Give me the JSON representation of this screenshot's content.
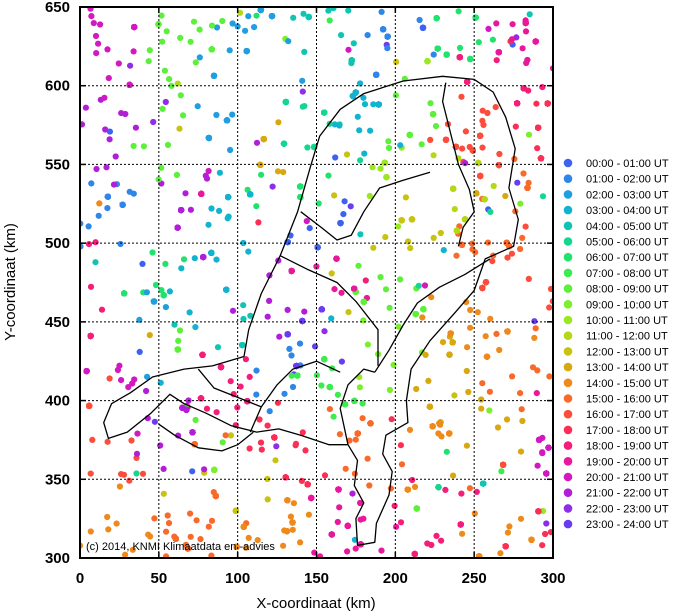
{
  "credit": "(c) 2014, KNMI Klimaatdata en -advies",
  "chart_data": {
    "type": "scatter",
    "xlabel": "X-coordinaat (km)",
    "ylabel": "Y-coordinaat (km)",
    "xlim": [
      0,
      300
    ],
    "ylim": [
      300,
      650
    ],
    "x_ticks": [
      0,
      50,
      100,
      150,
      200,
      250,
      300
    ],
    "y_ticks": [
      300,
      350,
      400,
      450,
      500,
      550,
      600,
      650
    ],
    "grid": true,
    "legend_position": "right",
    "series": [
      {
        "name": "00:00 - 01:00 UT",
        "color": "#3d62f2"
      },
      {
        "name": "01:00 - 02:00 UT",
        "color": "#2e86e8"
      },
      {
        "name": "02:00 - 03:00 UT",
        "color": "#1f9ee0"
      },
      {
        "name": "03:00 - 04:00 UT",
        "color": "#12b3cf"
      },
      {
        "name": "04:00 - 05:00 UT",
        "color": "#10c4b2"
      },
      {
        "name": "05:00 - 06:00 UT",
        "color": "#14d690"
      },
      {
        "name": "06:00 - 07:00 UT",
        "color": "#22e26e"
      },
      {
        "name": "07:00 - 08:00 UT",
        "color": "#3cec4e"
      },
      {
        "name": "08:00 - 09:00 UT",
        "color": "#5cf03a"
      },
      {
        "name": "09:00 - 10:00 UT",
        "color": "#7cef2c"
      },
      {
        "name": "10:00 - 11:00 UT",
        "color": "#9ae81e"
      },
      {
        "name": "11:00 - 12:00 UT",
        "color": "#b4d816"
      },
      {
        "name": "12:00 - 13:00 UT",
        "color": "#c8c210"
      },
      {
        "name": "13:00 - 14:00 UT",
        "color": "#d8a810"
      },
      {
        "name": "14:00 - 15:00 UT",
        "color": "#ee8a1c"
      },
      {
        "name": "15:00 - 16:00 UT",
        "color": "#f86a2a"
      },
      {
        "name": "16:00 - 17:00 UT",
        "color": "#fb4c3c"
      },
      {
        "name": "17:00 - 18:00 UT",
        "color": "#fb2f56"
      },
      {
        "name": "18:00 - 19:00 UT",
        "color": "#f41e78"
      },
      {
        "name": "19:00 - 20:00 UT",
        "color": "#e8189c"
      },
      {
        "name": "20:00 - 21:00 UT",
        "color": "#d218c0"
      },
      {
        "name": "21:00 - 22:00 UT",
        "color": "#b21ed8"
      },
      {
        "name": "22:00 - 23:00 UT",
        "color": "#8e2ee8"
      },
      {
        "name": "23:00 - 24:00 UT",
        "color": "#6a3cf0"
      }
    ],
    "hotspots": [
      {
        "x": 20,
        "y": 620,
        "hour": 20
      },
      {
        "x": 60,
        "y": 625,
        "hour": 8
      },
      {
        "x": 110,
        "y": 615,
        "hour": 2
      },
      {
        "x": 160,
        "y": 625,
        "hour": 4
      },
      {
        "x": 200,
        "y": 630,
        "hour": 1
      },
      {
        "x": 245,
        "y": 622,
        "hour": 6
      },
      {
        "x": 285,
        "y": 620,
        "hour": 19
      },
      {
        "x": 15,
        "y": 570,
        "hour": 21
      },
      {
        "x": 55,
        "y": 570,
        "hour": 8
      },
      {
        "x": 95,
        "y": 580,
        "hour": 2
      },
      {
        "x": 140,
        "y": 575,
        "hour": 5
      },
      {
        "x": 175,
        "y": 590,
        "hour": 3
      },
      {
        "x": 215,
        "y": 595,
        "hour": 8
      },
      {
        "x": 250,
        "y": 575,
        "hour": 16
      },
      {
        "x": 285,
        "y": 570,
        "hour": 17
      },
      {
        "x": 20,
        "y": 520,
        "hour": 1
      },
      {
        "x": 60,
        "y": 520,
        "hour": 21
      },
      {
        "x": 90,
        "y": 510,
        "hour": 3
      },
      {
        "x": 130,
        "y": 525,
        "hour": 6
      },
      {
        "x": 160,
        "y": 520,
        "hour": 0
      },
      {
        "x": 200,
        "y": 525,
        "hour": 10
      },
      {
        "x": 240,
        "y": 530,
        "hour": 11
      },
      {
        "x": 280,
        "y": 520,
        "hour": 15
      },
      {
        "x": 10,
        "y": 470,
        "hour": 18
      },
      {
        "x": 45,
        "y": 480,
        "hour": 6
      },
      {
        "x": 80,
        "y": 470,
        "hour": 3
      },
      {
        "x": 120,
        "y": 460,
        "hour": 21
      },
      {
        "x": 160,
        "y": 470,
        "hour": 19
      },
      {
        "x": 195,
        "y": 470,
        "hour": 8
      },
      {
        "x": 230,
        "y": 465,
        "hour": 14
      },
      {
        "x": 270,
        "y": 470,
        "hour": 16
      },
      {
        "x": 20,
        "y": 420,
        "hour": 20
      },
      {
        "x": 50,
        "y": 425,
        "hour": 8
      },
      {
        "x": 90,
        "y": 410,
        "hour": 18
      },
      {
        "x": 125,
        "y": 420,
        "hour": 1
      },
      {
        "x": 160,
        "y": 410,
        "hour": 7
      },
      {
        "x": 195,
        "y": 425,
        "hour": 9
      },
      {
        "x": 230,
        "y": 415,
        "hour": 13
      },
      {
        "x": 270,
        "y": 420,
        "hour": 15
      },
      {
        "x": 20,
        "y": 370,
        "hour": 16
      },
      {
        "x": 60,
        "y": 375,
        "hour": 21
      },
      {
        "x": 100,
        "y": 360,
        "hour": 12
      },
      {
        "x": 140,
        "y": 375,
        "hour": 17
      },
      {
        "x": 180,
        "y": 370,
        "hour": 15
      },
      {
        "x": 220,
        "y": 365,
        "hour": 14
      },
      {
        "x": 260,
        "y": 370,
        "hour": 13
      },
      {
        "x": 290,
        "y": 360,
        "hour": 20
      },
      {
        "x": 20,
        "y": 320,
        "hour": 14
      },
      {
        "x": 70,
        "y": 320,
        "hour": 15
      },
      {
        "x": 120,
        "y": 315,
        "hour": 14
      },
      {
        "x": 170,
        "y": 320,
        "hour": 19
      },
      {
        "x": 220,
        "y": 320,
        "hour": 18
      },
      {
        "x": 265,
        "y": 320,
        "hour": 14
      },
      {
        "x": 290,
        "y": 330,
        "hour": 17
      },
      {
        "x": 145,
        "y": 440,
        "hour": 23
      },
      {
        "x": 105,
        "y": 440,
        "hour": 4
      },
      {
        "x": 215,
        "y": 500,
        "hour": 12
      },
      {
        "x": 240,
        "y": 490,
        "hour": 15
      },
      {
        "x": 120,
        "y": 560,
        "hour": 13
      },
      {
        "x": 35,
        "y": 600,
        "hour": 22
      },
      {
        "x": 265,
        "y": 600,
        "hour": 18
      },
      {
        "x": 180,
        "y": 440,
        "hour": 9
      },
      {
        "x": 260,
        "y": 440,
        "hour": 14
      },
      {
        "x": 35,
        "y": 450,
        "hour": 2
      }
    ],
    "borders": [
      [
        [
          104,
          428
        ],
        [
          107,
          445
        ],
        [
          115,
          468
        ],
        [
          127,
          492
        ],
        [
          138,
          520
        ],
        [
          146,
          548
        ],
        [
          152,
          568
        ],
        [
          165,
          585
        ],
        [
          180,
          595
        ],
        [
          205,
          603
        ],
        [
          230,
          606
        ],
        [
          250,
          604
        ],
        [
          262,
          596
        ],
        [
          270,
          580
        ],
        [
          276,
          560
        ],
        [
          272,
          535
        ],
        [
          278,
          515
        ],
        [
          275,
          498
        ],
        [
          257,
          490
        ],
        [
          250,
          470
        ],
        [
          238,
          456
        ],
        [
          222,
          438
        ],
        [
          210,
          420
        ],
        [
          207,
          400
        ],
        [
          208,
          386
        ],
        [
          194,
          378
        ],
        [
          192,
          366
        ],
        [
          198,
          355
        ],
        [
          196,
          340
        ],
        [
          188,
          322
        ],
        [
          187,
          310
        ],
        [
          176,
          308
        ],
        [
          175,
          325
        ],
        [
          180,
          335
        ],
        [
          174,
          346
        ],
        [
          176,
          362
        ],
        [
          170,
          372
        ],
        [
          158,
          372
        ],
        [
          140,
          378
        ],
        [
          126,
          382
        ],
        [
          112,
          380
        ],
        [
          96,
          384
        ],
        [
          80,
          392
        ],
        [
          66,
          398
        ],
        [
          57,
          404
        ],
        [
          45,
          392
        ],
        [
          30,
          380
        ],
        [
          18,
          376
        ],
        [
          15,
          386
        ],
        [
          20,
          398
        ],
        [
          32,
          405
        ],
        [
          46,
          415
        ],
        [
          66,
          420
        ],
        [
          84,
          422
        ],
        [
          104,
          428
        ]
      ],
      [
        [
          240,
          498
        ],
        [
          243,
          510
        ],
        [
          250,
          520
        ],
        [
          247,
          534
        ],
        [
          240,
          550
        ],
        [
          235,
          570
        ],
        [
          230,
          590
        ],
        [
          232,
          602
        ]
      ],
      [
        [
          187,
          418
        ],
        [
          196,
          432
        ],
        [
          205,
          448
        ],
        [
          214,
          462
        ],
        [
          228,
          472
        ],
        [
          244,
          480
        ],
        [
          260,
          490
        ]
      ],
      [
        [
          170,
          372
        ],
        [
          165,
          395
        ],
        [
          170,
          410
        ],
        [
          180,
          420
        ],
        [
          187,
          418
        ]
      ],
      [
        [
          127,
          492
        ],
        [
          145,
          483
        ],
        [
          163,
          475
        ],
        [
          175,
          463
        ],
        [
          189,
          445
        ],
        [
          189,
          422
        ]
      ],
      [
        [
          140,
          520
        ],
        [
          153,
          510
        ],
        [
          163,
          502
        ],
        [
          172,
          505
        ],
        [
          180,
          520
        ],
        [
          190,
          535
        ],
        [
          205,
          540
        ],
        [
          222,
          545
        ]
      ],
      [
        [
          108,
          380
        ],
        [
          115,
          396
        ],
        [
          125,
          410
        ],
        [
          135,
          420
        ],
        [
          150,
          425
        ],
        [
          165,
          418
        ]
      ],
      [
        [
          75,
          420
        ],
        [
          85,
          408
        ],
        [
          100,
          402
        ],
        [
          115,
          396
        ]
      ],
      [
        [
          50,
          385
        ],
        [
          60,
          378
        ],
        [
          75,
          370
        ],
        [
          90,
          368
        ],
        [
          100,
          372
        ],
        [
          110,
          380
        ]
      ]
    ]
  }
}
